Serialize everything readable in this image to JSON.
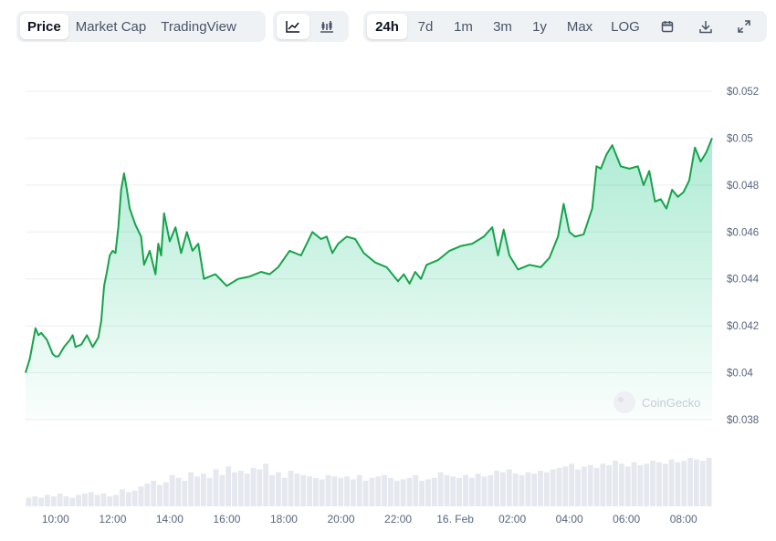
{
  "toolbar": {
    "view_tabs": [
      "Price",
      "Market Cap",
      "TradingView"
    ],
    "range_tabs": [
      "24h",
      "7d",
      "1m",
      "3m",
      "1y",
      "Max",
      "LOG"
    ],
    "active_view": "Price",
    "active_range": "24h"
  },
  "watermark": "CoinGecko",
  "colors": {
    "line": "#16a34a",
    "area": "#16c784",
    "volume": "#e5e8ee",
    "grid": "#eceef2"
  },
  "chart_data": {
    "type": "area",
    "y_ticks": [
      "$0.052",
      "$0.05",
      "$0.048",
      "$0.046",
      "$0.044",
      "$0.042",
      "$0.04",
      "$0.038"
    ],
    "ylim": [
      0.038,
      0.052
    ],
    "x_ticks": [
      "10:00",
      "12:00",
      "14:00",
      "16:00",
      "18:00",
      "20:00",
      "22:00",
      "16. Feb",
      "02:00",
      "04:00",
      "06:00",
      "08:00"
    ],
    "x_tick_hours": [
      10,
      12,
      14,
      16,
      18,
      20,
      22,
      24,
      26,
      28,
      30,
      32
    ],
    "xlim_hours": [
      8.95,
      33.0
    ],
    "grid": true,
    "series": [
      {
        "x_hours": [
          8.95,
          9.1,
          9.3,
          9.4,
          9.5,
          9.7,
          9.9,
          10.0,
          10.1,
          10.3,
          10.5,
          10.6,
          10.7,
          10.9,
          11.1,
          11.3,
          11.5,
          11.6,
          11.7,
          11.8,
          11.9,
          12.0,
          12.1,
          12.2,
          12.3,
          12.4,
          12.5,
          12.6,
          12.8,
          13.0,
          13.1,
          13.3,
          13.5,
          13.6,
          13.7,
          13.8,
          14.0,
          14.2,
          14.4,
          14.6,
          14.8,
          15.0,
          15.2,
          15.4,
          15.6,
          16.0,
          16.4,
          16.8,
          17.2,
          17.5,
          17.8,
          18.2,
          18.6,
          19.0,
          19.3,
          19.5,
          19.7,
          19.9,
          20.2,
          20.5,
          20.8,
          21.2,
          21.6,
          22.0,
          22.2,
          22.4,
          22.6,
          22.8,
          23.0,
          23.4,
          23.8,
          24.2,
          24.6,
          25.0,
          25.3,
          25.5,
          25.7,
          25.9,
          26.2,
          26.6,
          27.0,
          27.3,
          27.6,
          27.8,
          28.0,
          28.2,
          28.5,
          28.8,
          28.95,
          29.1,
          29.3,
          29.5,
          29.8,
          30.1,
          30.4,
          30.6,
          30.8,
          31.0,
          31.2,
          31.4,
          31.6,
          31.8,
          32.0,
          32.2,
          32.4,
          32.6,
          32.8,
          33.0
        ],
        "values": [
          0.04,
          0.0406,
          0.0419,
          0.0416,
          0.0417,
          0.0414,
          0.0408,
          0.0407,
          0.0407,
          0.0411,
          0.0414,
          0.0416,
          0.0411,
          0.0412,
          0.0416,
          0.0411,
          0.0415,
          0.0422,
          0.0437,
          0.0443,
          0.045,
          0.0452,
          0.0451,
          0.0462,
          0.0478,
          0.0485,
          0.0478,
          0.047,
          0.0463,
          0.0458,
          0.0446,
          0.0452,
          0.0442,
          0.0455,
          0.045,
          0.0468,
          0.0456,
          0.0462,
          0.0451,
          0.046,
          0.0452,
          0.0455,
          0.044,
          0.0441,
          0.0442,
          0.0437,
          0.044,
          0.0441,
          0.0443,
          0.0442,
          0.0445,
          0.0452,
          0.045,
          0.046,
          0.0457,
          0.0458,
          0.0451,
          0.0455,
          0.0458,
          0.0457,
          0.0451,
          0.0447,
          0.0445,
          0.0439,
          0.0442,
          0.0438,
          0.0443,
          0.044,
          0.0446,
          0.0448,
          0.0452,
          0.0454,
          0.0455,
          0.0458,
          0.0462,
          0.045,
          0.0461,
          0.045,
          0.0444,
          0.0446,
          0.0445,
          0.0449,
          0.0458,
          0.0472,
          0.046,
          0.0458,
          0.0459,
          0.047,
          0.0488,
          0.0487,
          0.0493,
          0.0497,
          0.0488,
          0.0487,
          0.0488,
          0.048,
          0.0486,
          0.0473,
          0.0474,
          0.047,
          0.0478,
          0.0475,
          0.0477,
          0.0482,
          0.0496,
          0.049,
          0.0494,
          0.05
        ]
      }
    ],
    "volume": [
      6,
      7,
      6,
      8,
      7,
      9,
      7,
      6,
      8,
      9,
      10,
      8,
      9,
      7,
      8,
      12,
      10,
      11,
      14,
      16,
      18,
      15,
      17,
      22,
      20,
      18,
      24,
      21,
      23,
      20,
      26,
      22,
      28,
      24,
      25,
      23,
      27,
      26,
      30,
      22,
      24,
      20,
      25,
      23,
      22,
      21,
      20,
      19,
      22,
      21,
      20,
      21,
      19,
      22,
      18,
      20,
      21,
      22,
      20,
      18,
      19,
      20,
      22,
      18,
      19,
      20,
      24,
      22,
      21,
      20,
      22,
      20,
      23,
      21,
      22,
      25,
      24,
      26,
      23,
      22,
      24,
      23,
      25,
      24,
      26,
      27,
      28,
      30,
      26,
      28,
      29,
      27,
      30,
      29,
      32,
      30,
      28,
      31,
      29,
      30,
      32,
      31,
      30,
      33,
      31,
      32,
      34,
      33,
      32,
      34
    ]
  }
}
